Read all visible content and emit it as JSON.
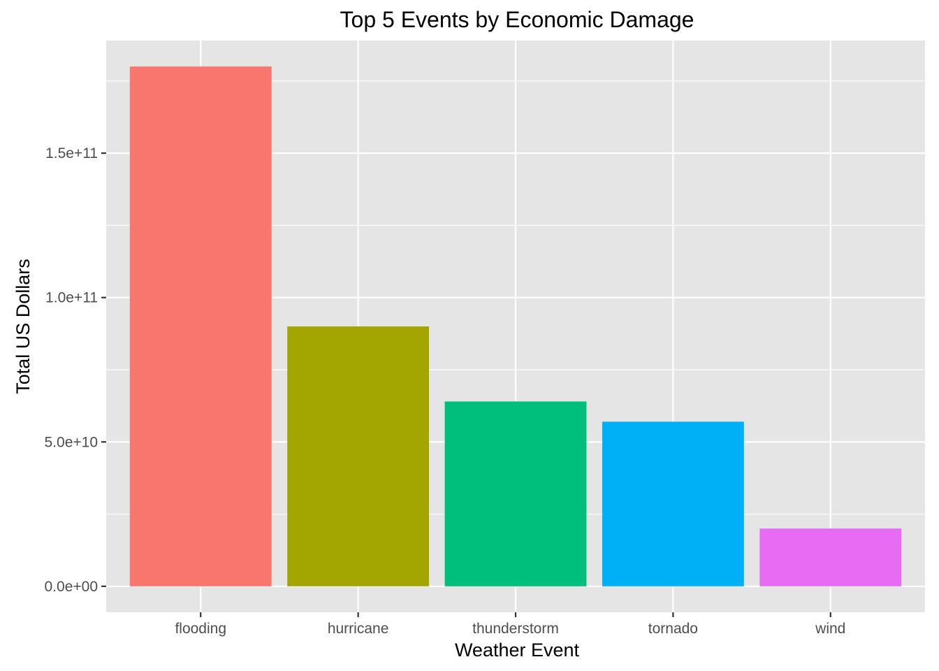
{
  "chart_data": {
    "type": "bar",
    "title": "Top 5 Events by Economic Damage",
    "xlabel": "Weather Event",
    "ylabel": "Total US Dollars",
    "categories": [
      "flooding",
      "hurricane",
      "thunderstorm",
      "tornado",
      "wind"
    ],
    "values": [
      180000000000,
      90000000000,
      64000000000,
      57000000000,
      20000000000
    ],
    "colors": [
      "#F8766D",
      "#A3A500",
      "#00BF7D",
      "#00B0F6",
      "#E76BF3"
    ],
    "ylim": [
      -9000000000,
      189000000000
    ],
    "yticks": [
      0,
      50000000000,
      100000000000,
      150000000000
    ],
    "ytick_labels": [
      "0.0e+00",
      "5.0e+10",
      "1.0e+11",
      "1.5e+11"
    ],
    "grid": true,
    "panel_background": "#E5E5E5",
    "legend": "none"
  }
}
